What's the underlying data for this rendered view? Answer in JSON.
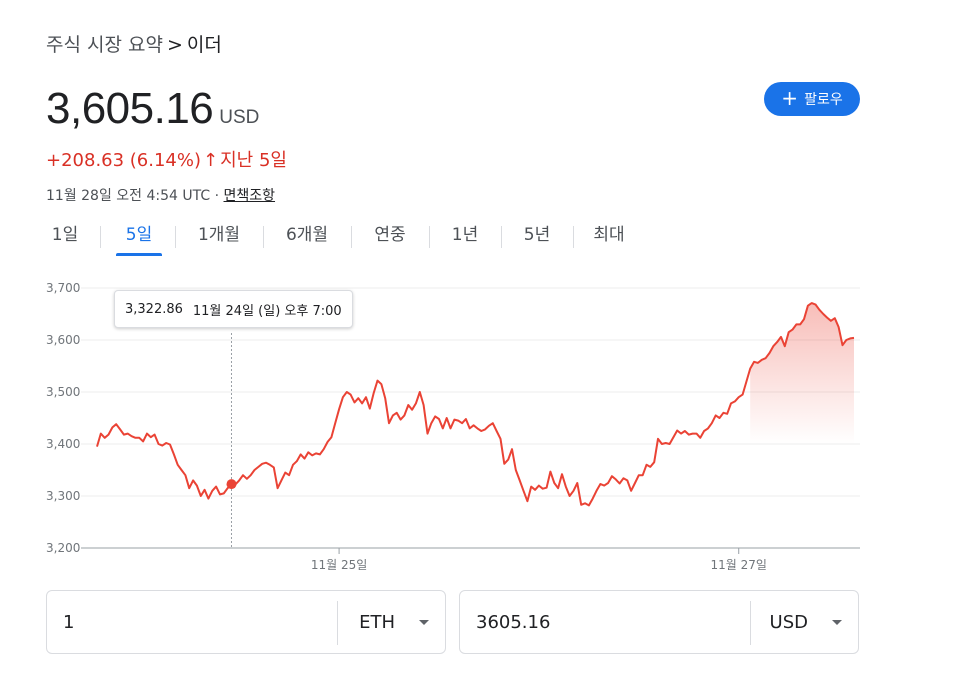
{
  "breadcrumb": {
    "parent": "주식 시장 요약",
    "separator": ">",
    "current": "이더"
  },
  "quote": {
    "price": "3,605.16",
    "currency": "USD",
    "change": "+208.63 (6.14%)",
    "change_arrow": "↑",
    "change_period": "지난 5일",
    "timestamp": "11월 28일 오전 4:54 UTC · ",
    "disclaimer": "면책조항",
    "change_color": "#d93025"
  },
  "follow_button": {
    "icon": "plus-icon",
    "label": "팔로우",
    "color": "#1a73e8"
  },
  "tabs": [
    "1일",
    "5일",
    "1개월",
    "6개월",
    "연중",
    "1년",
    "5년",
    "최대"
  ],
  "active_tab": 1,
  "tooltip": {
    "value": "3,322.86",
    "date": "11월 24일 (일) 오후 7:00"
  },
  "chart_data": {
    "type": "area",
    "line_color": "#ea4335",
    "y_ticks": [
      "3,700",
      "3,600",
      "3,500",
      "3,400",
      "3,300",
      "3,200"
    ],
    "ylim": [
      3200,
      3700
    ],
    "x_ticks": [
      "11월 25일",
      "11월 27일"
    ],
    "hover_point_value": 3322.86,
    "series": [
      {
        "values": [
          3395,
          3420,
          3412,
          3418,
          3432,
          3438,
          3428,
          3418,
          3420,
          3415,
          3412,
          3412,
          3405,
          3420,
          3413,
          3418,
          3400,
          3397,
          3402,
          3399,
          3380,
          3360,
          3350,
          3340,
          3315,
          3330,
          3320,
          3300,
          3312,
          3295,
          3310,
          3318,
          3303,
          3305,
          3315,
          3323,
          3322,
          3330,
          3340,
          3333,
          3340,
          3350,
          3356,
          3362,
          3364,
          3360,
          3355,
          3315,
          3330,
          3345,
          3340,
          3360,
          3367,
          3380,
          3372,
          3384,
          3378,
          3382,
          3380,
          3390,
          3404,
          3413,
          3440,
          3467,
          3490,
          3500,
          3495,
          3480,
          3488,
          3478,
          3490,
          3468,
          3498,
          3522,
          3515,
          3488,
          3440,
          3455,
          3460,
          3447,
          3455,
          3475,
          3466,
          3478,
          3500,
          3475,
          3420,
          3440,
          3453,
          3448,
          3430,
          3450,
          3430,
          3447,
          3445,
          3440,
          3448,
          3430,
          3436,
          3430,
          3425,
          3428,
          3435,
          3440,
          3425,
          3410,
          3362,
          3370,
          3390,
          3350,
          3330,
          3310,
          3290,
          3318,
          3312,
          3320,
          3314,
          3316,
          3347,
          3325,
          3315,
          3342,
          3318,
          3300,
          3310,
          3325,
          3283,
          3286,
          3282,
          3295,
          3310,
          3323,
          3320,
          3325,
          3338,
          3332,
          3324,
          3334,
          3330,
          3310,
          3325,
          3340,
          3340,
          3360,
          3356,
          3365,
          3410,
          3400,
          3402,
          3400,
          3413,
          3426,
          3420,
          3425,
          3418,
          3420,
          3420,
          3412,
          3425,
          3430,
          3440,
          3455,
          3450,
          3460,
          3458,
          3478,
          3482,
          3490,
          3495,
          3520,
          3545,
          3558,
          3556,
          3562,
          3565,
          3575,
          3588,
          3596,
          3606,
          3588,
          3615,
          3620,
          3630,
          3630,
          3640,
          3666,
          3671,
          3668,
          3658,
          3650,
          3643,
          3637,
          3642,
          3625,
          3590,
          3600,
          3603,
          3604
        ]
      }
    ]
  },
  "converter": [
    {
      "amount": "1",
      "unit": "ETH"
    },
    {
      "amount": "3605.16",
      "unit": "USD"
    }
  ]
}
